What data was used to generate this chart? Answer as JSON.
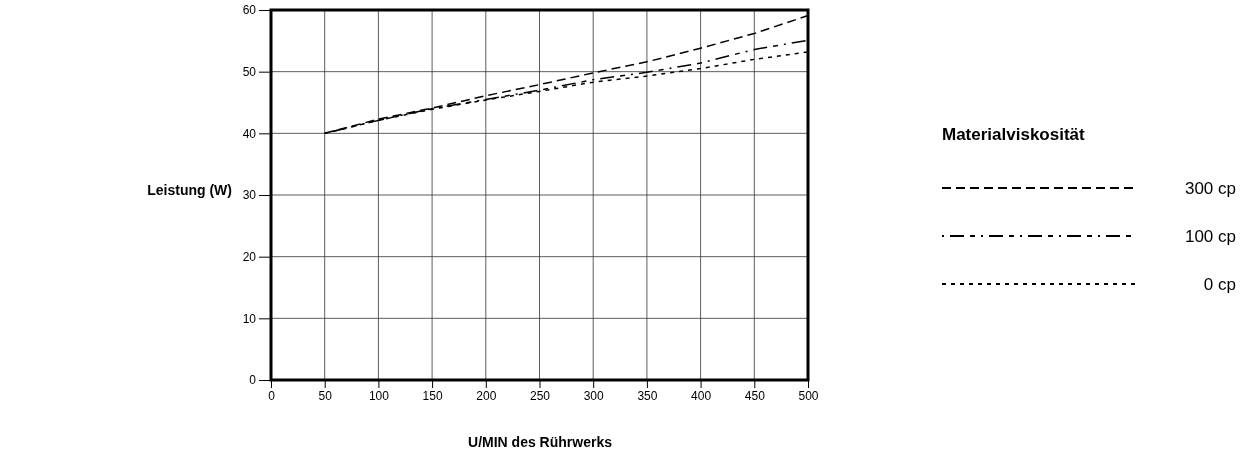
{
  "chart_data": {
    "type": "line",
    "xlabel": "U/MIN des Rührwerks",
    "ylabel": "Leistung (W)",
    "legend_title": "Materialviskosität",
    "legend": "right",
    "grid": true,
    "xlim": [
      0,
      500
    ],
    "xticks": [
      0,
      50,
      100,
      150,
      200,
      250,
      300,
      350,
      400,
      450,
      500
    ],
    "ylim": [
      0,
      60
    ],
    "yticks": [
      0,
      10,
      20,
      30,
      40,
      50,
      60
    ],
    "x": [
      50,
      100,
      150,
      200,
      250,
      300,
      350,
      400,
      450,
      500
    ],
    "series": [
      {
        "name": "300 cp",
        "color": "#000000",
        "line_style": "dashed",
        "values": [
          40,
          42.3,
          44.1,
          46.1,
          47.9,
          49.8,
          51.6,
          53.8,
          56.2,
          59.1
        ]
      },
      {
        "name": "100 cp",
        "color": "#000000",
        "line_style": "dashdot",
        "values": [
          40,
          42.1,
          44.0,
          45.5,
          47.0,
          48.7,
          49.9,
          51.4,
          53.6,
          55.1
        ]
      },
      {
        "name": "0 cp",
        "color": "#000000",
        "line_style": "dotted",
        "values": [
          40,
          42.1,
          43.9,
          45.4,
          46.8,
          48.3,
          49.3,
          50.5,
          52.0,
          53.2
        ]
      }
    ]
  }
}
